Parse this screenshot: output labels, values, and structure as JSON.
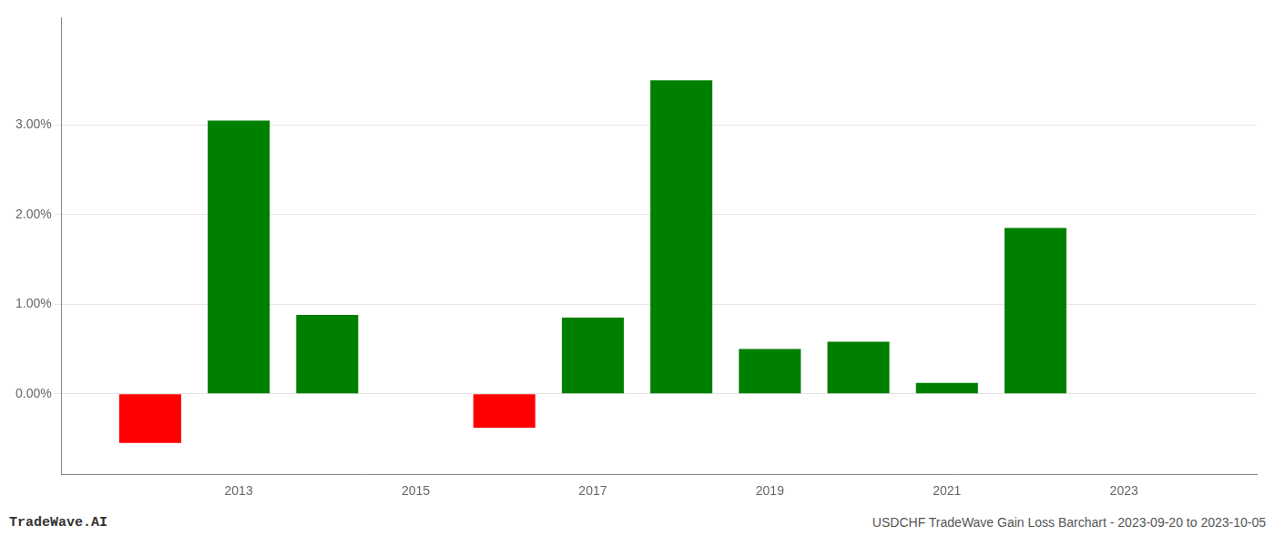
{
  "chart_data": {
    "type": "bar",
    "x": [
      2012,
      2013,
      2014,
      2016,
      2017,
      2018,
      2019,
      2020,
      2021,
      2022
    ],
    "values": [
      -0.0055,
      0.0305,
      0.0088,
      -0.0038,
      0.0085,
      0.035,
      0.005,
      0.0058,
      0.0012,
      0.0185
    ],
    "colors": [
      "#ff0000",
      "#008000",
      "#008000",
      "#ff0000",
      "#008000",
      "#008000",
      "#008000",
      "#008000",
      "#008000",
      "#008000"
    ],
    "xlim": [
      2011.0,
      2024.5
    ],
    "xticks": [
      2013,
      2015,
      2017,
      2019,
      2021,
      2023
    ],
    "ylim": [
      -0.009,
      0.042
    ],
    "yticks": [
      {
        "value": 0.0,
        "label": "0.00%"
      },
      {
        "value": 0.01,
        "label": "1.00%"
      },
      {
        "value": 0.02,
        "label": "2.00%"
      },
      {
        "value": 0.03,
        "label": "3.00%"
      }
    ],
    "grid": "y",
    "annotations": [
      "TradeWave.AI",
      "USDCHF TradeWave Gain Loss Barchart - 2023-09-20 to 2023-10-05"
    ]
  }
}
